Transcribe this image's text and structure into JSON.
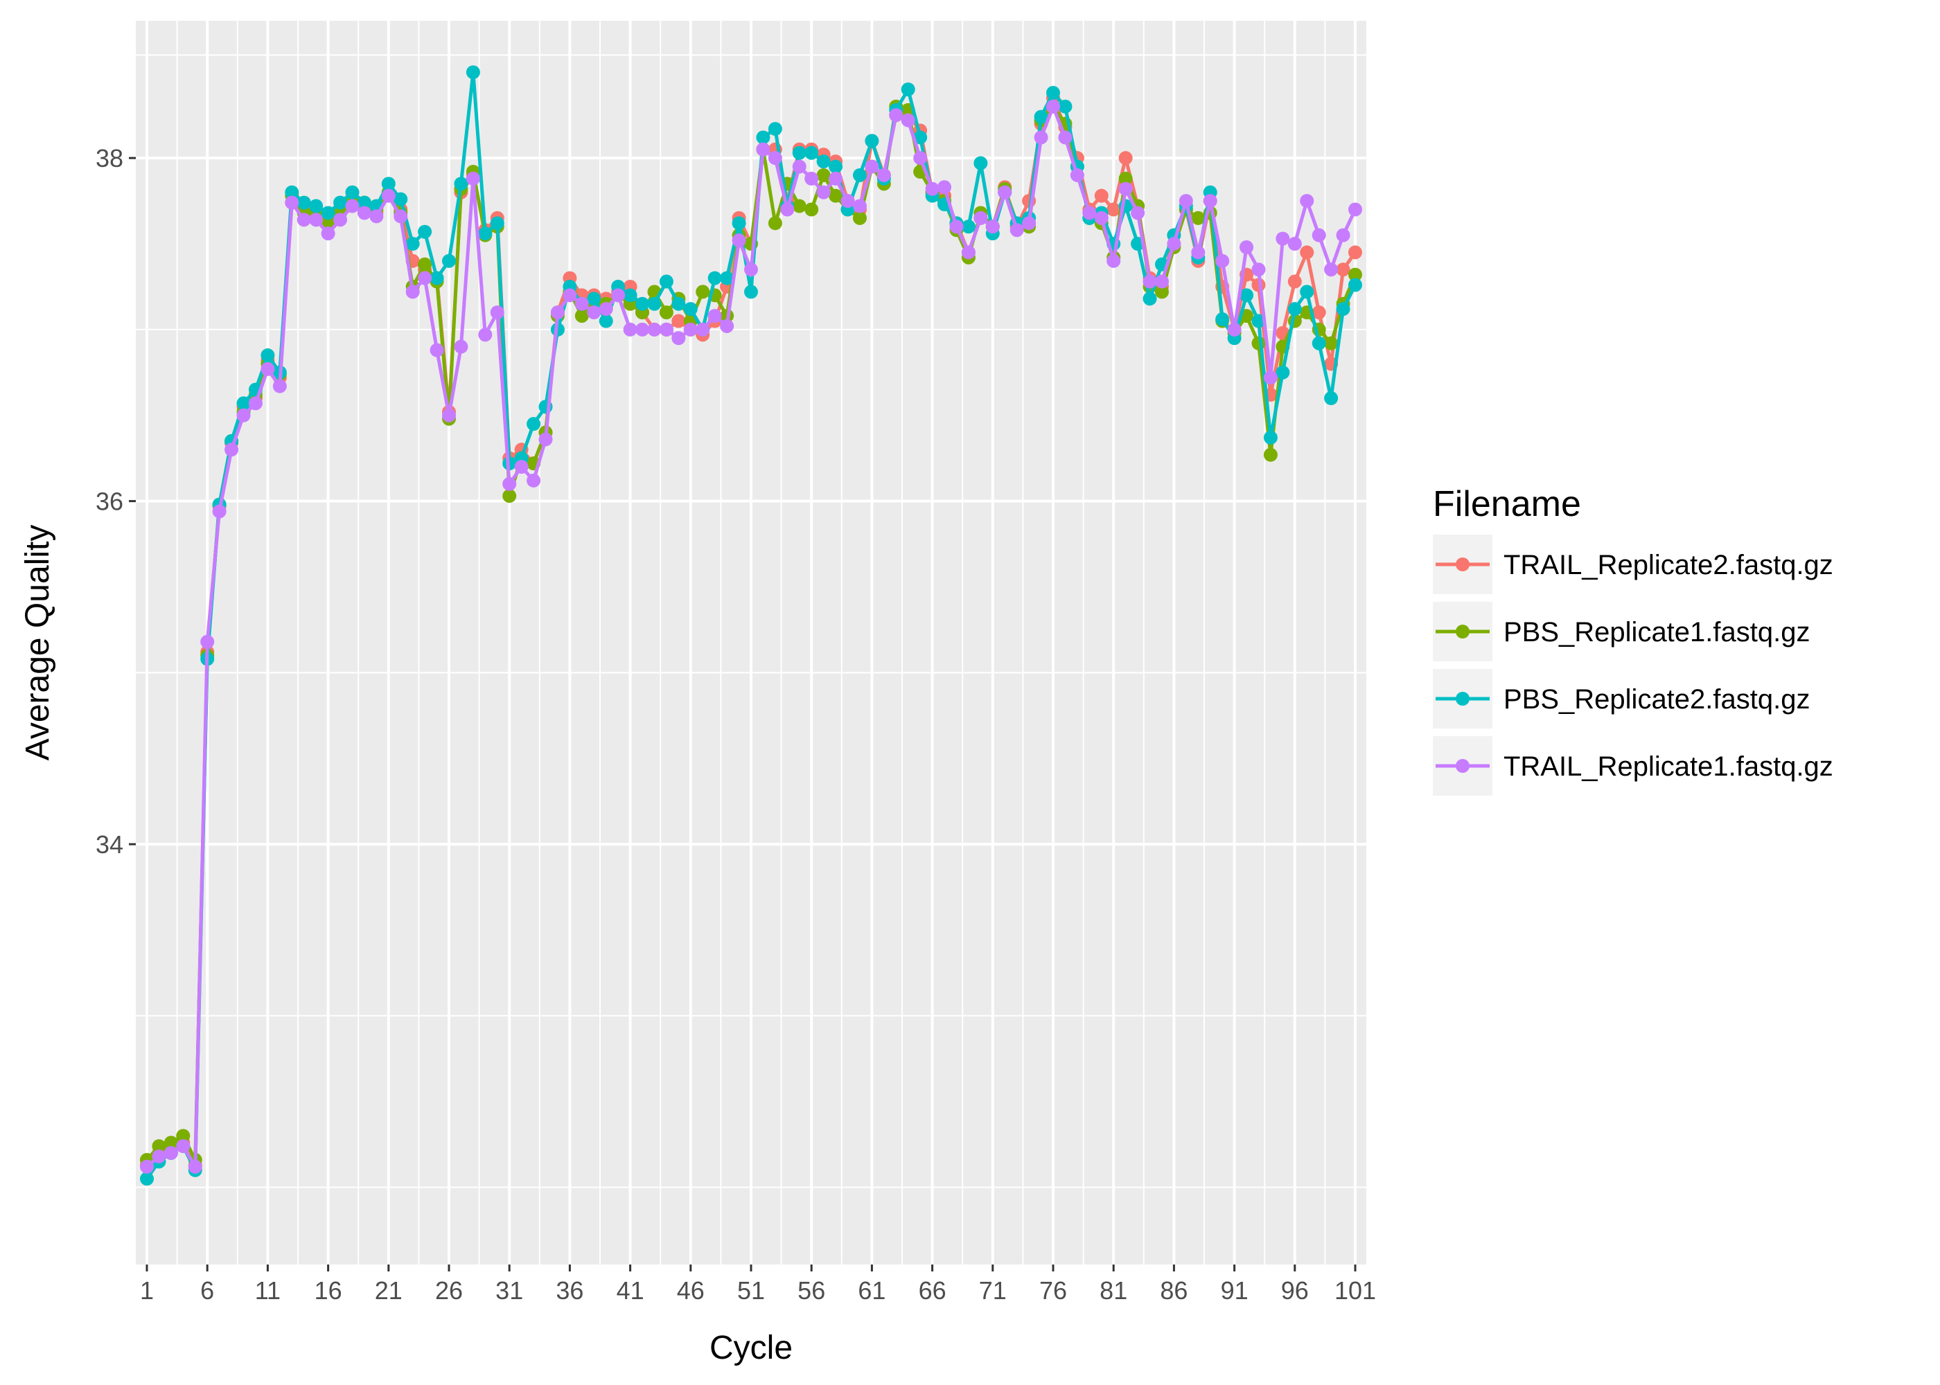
{
  "chart_data": {
    "type": "line",
    "xlabel": "Cycle",
    "ylabel": "Average Quality",
    "xlim": [
      1,
      101
    ],
    "ylim": [
      31.55,
      38.8
    ],
    "x_ticks": [
      1,
      6,
      11,
      16,
      21,
      26,
      31,
      36,
      41,
      46,
      51,
      56,
      61,
      66,
      71,
      76,
      81,
      86,
      91,
      96,
      101
    ],
    "y_ticks": [
      34,
      36,
      38
    ],
    "grid": true,
    "legend": {
      "title": "Filename",
      "position": "right"
    },
    "x": [
      1,
      2,
      3,
      4,
      5,
      6,
      7,
      8,
      9,
      10,
      11,
      12,
      13,
      14,
      15,
      16,
      17,
      18,
      19,
      20,
      21,
      22,
      23,
      24,
      25,
      26,
      27,
      28,
      29,
      30,
      31,
      32,
      33,
      34,
      35,
      36,
      37,
      38,
      39,
      40,
      41,
      42,
      43,
      44,
      45,
      46,
      47,
      48,
      49,
      50,
      51,
      52,
      53,
      54,
      55,
      56,
      57,
      58,
      59,
      60,
      61,
      62,
      63,
      64,
      65,
      66,
      67,
      68,
      69,
      70,
      71,
      72,
      73,
      74,
      75,
      76,
      77,
      78,
      79,
      80,
      81,
      82,
      83,
      84,
      85,
      86,
      87,
      88,
      89,
      90,
      91,
      92,
      93,
      94,
      95,
      96,
      97,
      98,
      99,
      100,
      101
    ],
    "series": [
      {
        "name": "TRAIL_Replicate2.fastq.gz",
        "color": "#F8766D",
        "values": [
          32.13,
          32.2,
          32.22,
          32.26,
          32.13,
          35.12,
          35.97,
          36.34,
          36.55,
          36.6,
          36.82,
          36.72,
          37.74,
          37.7,
          37.68,
          37.65,
          37.7,
          37.75,
          37.72,
          37.68,
          37.8,
          37.7,
          37.4,
          37.35,
          37.3,
          36.52,
          37.8,
          37.9,
          37.58,
          37.65,
          36.25,
          36.3,
          36.22,
          36.4,
          37.1,
          37.3,
          37.2,
          37.2,
          37.18,
          37.22,
          37.25,
          37.1,
          37.0,
          37.0,
          37.05,
          37.0,
          36.97,
          37.05,
          37.25,
          37.65,
          37.5,
          38.05,
          38.05,
          37.75,
          38.05,
          38.05,
          38.02,
          37.98,
          37.75,
          37.7,
          38.1,
          37.9,
          38.25,
          38.25,
          38.16,
          37.8,
          37.78,
          37.62,
          37.45,
          37.65,
          37.6,
          37.83,
          37.6,
          37.75,
          38.2,
          38.35,
          38.18,
          38.0,
          37.7,
          37.78,
          37.7,
          38.0,
          37.72,
          37.3,
          37.25,
          37.55,
          37.7,
          37.4,
          37.75,
          37.25,
          37.0,
          37.32,
          37.26,
          36.62,
          36.98,
          37.28,
          37.45,
          37.1,
          36.8,
          37.35,
          37.45
        ]
      },
      {
        "name": "PBS_Replicate1.fastq.gz",
        "color": "#7CAE00",
        "values": [
          32.16,
          32.24,
          32.26,
          32.3,
          32.16,
          35.1,
          35.98,
          36.35,
          36.52,
          36.62,
          36.8,
          36.74,
          37.78,
          37.68,
          37.7,
          37.62,
          37.68,
          37.74,
          37.74,
          37.7,
          37.8,
          37.68,
          37.25,
          37.38,
          37.28,
          36.48,
          37.82,
          37.92,
          37.55,
          37.6,
          36.03,
          36.25,
          36.22,
          36.4,
          37.08,
          37.22,
          37.08,
          37.15,
          37.15,
          37.2,
          37.15,
          37.1,
          37.22,
          37.1,
          37.18,
          37.05,
          37.22,
          37.2,
          37.08,
          37.55,
          37.5,
          38.05,
          37.62,
          37.85,
          37.72,
          37.7,
          37.9,
          37.78,
          37.7,
          37.65,
          37.95,
          37.85,
          38.3,
          38.28,
          37.92,
          37.8,
          37.75,
          37.58,
          37.42,
          37.68,
          37.6,
          37.82,
          37.62,
          37.6,
          38.22,
          38.3,
          38.2,
          37.95,
          37.65,
          37.62,
          37.42,
          37.88,
          37.72,
          37.25,
          37.22,
          37.48,
          37.7,
          37.65,
          37.68,
          37.05,
          36.98,
          37.08,
          36.92,
          36.27,
          36.9,
          37.05,
          37.1,
          37.0,
          36.92,
          37.15,
          37.32
        ]
      },
      {
        "name": "PBS_Replicate2.fastq.gz",
        "color": "#00BFC4",
        "values": [
          32.05,
          32.15,
          32.2,
          32.24,
          32.1,
          35.08,
          35.98,
          36.35,
          36.57,
          36.65,
          36.85,
          36.75,
          37.8,
          37.74,
          37.72,
          37.68,
          37.74,
          37.8,
          37.74,
          37.72,
          37.85,
          37.76,
          37.5,
          37.57,
          37.3,
          37.4,
          37.85,
          38.5,
          37.56,
          37.62,
          36.22,
          36.25,
          36.45,
          36.55,
          37.0,
          37.25,
          37.15,
          37.18,
          37.05,
          37.25,
          37.2,
          37.15,
          37.15,
          37.28,
          37.15,
          37.12,
          37.0,
          37.3,
          37.3,
          37.62,
          37.22,
          38.12,
          38.17,
          37.72,
          38.03,
          38.03,
          37.98,
          37.95,
          37.7,
          37.9,
          38.1,
          37.88,
          38.28,
          38.4,
          38.12,
          37.78,
          37.73,
          37.62,
          37.6,
          37.97,
          37.56,
          37.8,
          37.62,
          37.65,
          38.24,
          38.38,
          38.3,
          37.95,
          37.65,
          37.68,
          37.5,
          37.72,
          37.5,
          37.18,
          37.38,
          37.55,
          37.72,
          37.42,
          37.8,
          37.06,
          36.95,
          37.2,
          37.05,
          36.37,
          36.75,
          37.12,
          37.22,
          36.92,
          36.6,
          37.12,
          37.26
        ]
      },
      {
        "name": "TRAIL_Replicate1.fastq.gz",
        "color": "#C77CFF",
        "values": [
          32.12,
          32.18,
          32.2,
          32.24,
          32.12,
          35.18,
          35.94,
          36.3,
          36.5,
          36.57,
          36.77,
          36.67,
          37.74,
          37.64,
          37.64,
          37.56,
          37.64,
          37.72,
          37.68,
          37.66,
          37.78,
          37.66,
          37.22,
          37.3,
          36.88,
          36.5,
          36.9,
          37.88,
          36.97,
          37.1,
          36.1,
          36.2,
          36.12,
          36.36,
          37.1,
          37.2,
          37.15,
          37.1,
          37.12,
          37.2,
          37.0,
          37.0,
          37.0,
          37.0,
          36.95,
          37.0,
          37.0,
          37.08,
          37.02,
          37.52,
          37.35,
          38.05,
          38.0,
          37.7,
          37.95,
          37.88,
          37.8,
          37.88,
          37.75,
          37.72,
          37.95,
          37.9,
          38.25,
          38.22,
          38.0,
          37.82,
          37.83,
          37.6,
          37.45,
          37.65,
          37.6,
          37.8,
          37.58,
          37.62,
          38.12,
          38.3,
          38.12,
          37.9,
          37.68,
          37.65,
          37.4,
          37.82,
          37.68,
          37.28,
          37.28,
          37.5,
          37.75,
          37.45,
          37.75,
          37.4,
          37.0,
          37.48,
          37.35,
          36.72,
          37.53,
          37.5,
          37.75,
          37.55,
          37.35,
          37.55,
          37.7
        ]
      }
    ]
  }
}
